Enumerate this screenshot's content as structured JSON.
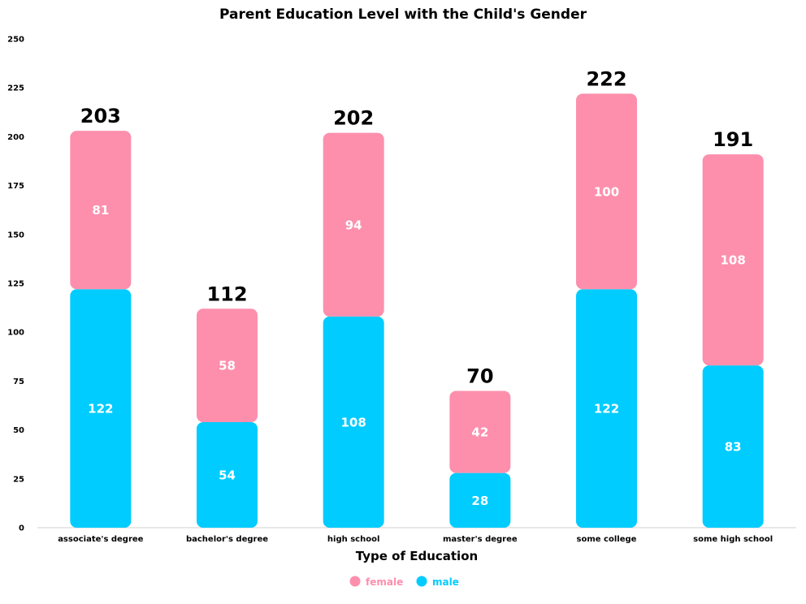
{
  "chart_data": {
    "type": "bar",
    "stacked": true,
    "title": "Parent Education Level with the Child's Gender",
    "xlabel": "Type of Education",
    "ylabel": "",
    "ylim": [
      0,
      250
    ],
    "yticks": [
      0,
      25,
      50,
      75,
      100,
      125,
      150,
      175,
      200,
      225,
      250
    ],
    "categories": [
      "associate's degree",
      "bachelor's degree",
      "high school",
      "master's degree",
      "some college",
      "some high school"
    ],
    "series": [
      {
        "name": "male",
        "color": "#00ccff",
        "values": [
          122,
          54,
          108,
          28,
          122,
          83
        ]
      },
      {
        "name": "female",
        "color": "#fd8fad",
        "values": [
          81,
          58,
          94,
          42,
          100,
          108
        ]
      }
    ],
    "totals": [
      203,
      112,
      202,
      70,
      222,
      191
    ],
    "legend": {
      "placement": "bottom",
      "order": [
        "female",
        "male"
      ]
    },
    "grid": false
  }
}
